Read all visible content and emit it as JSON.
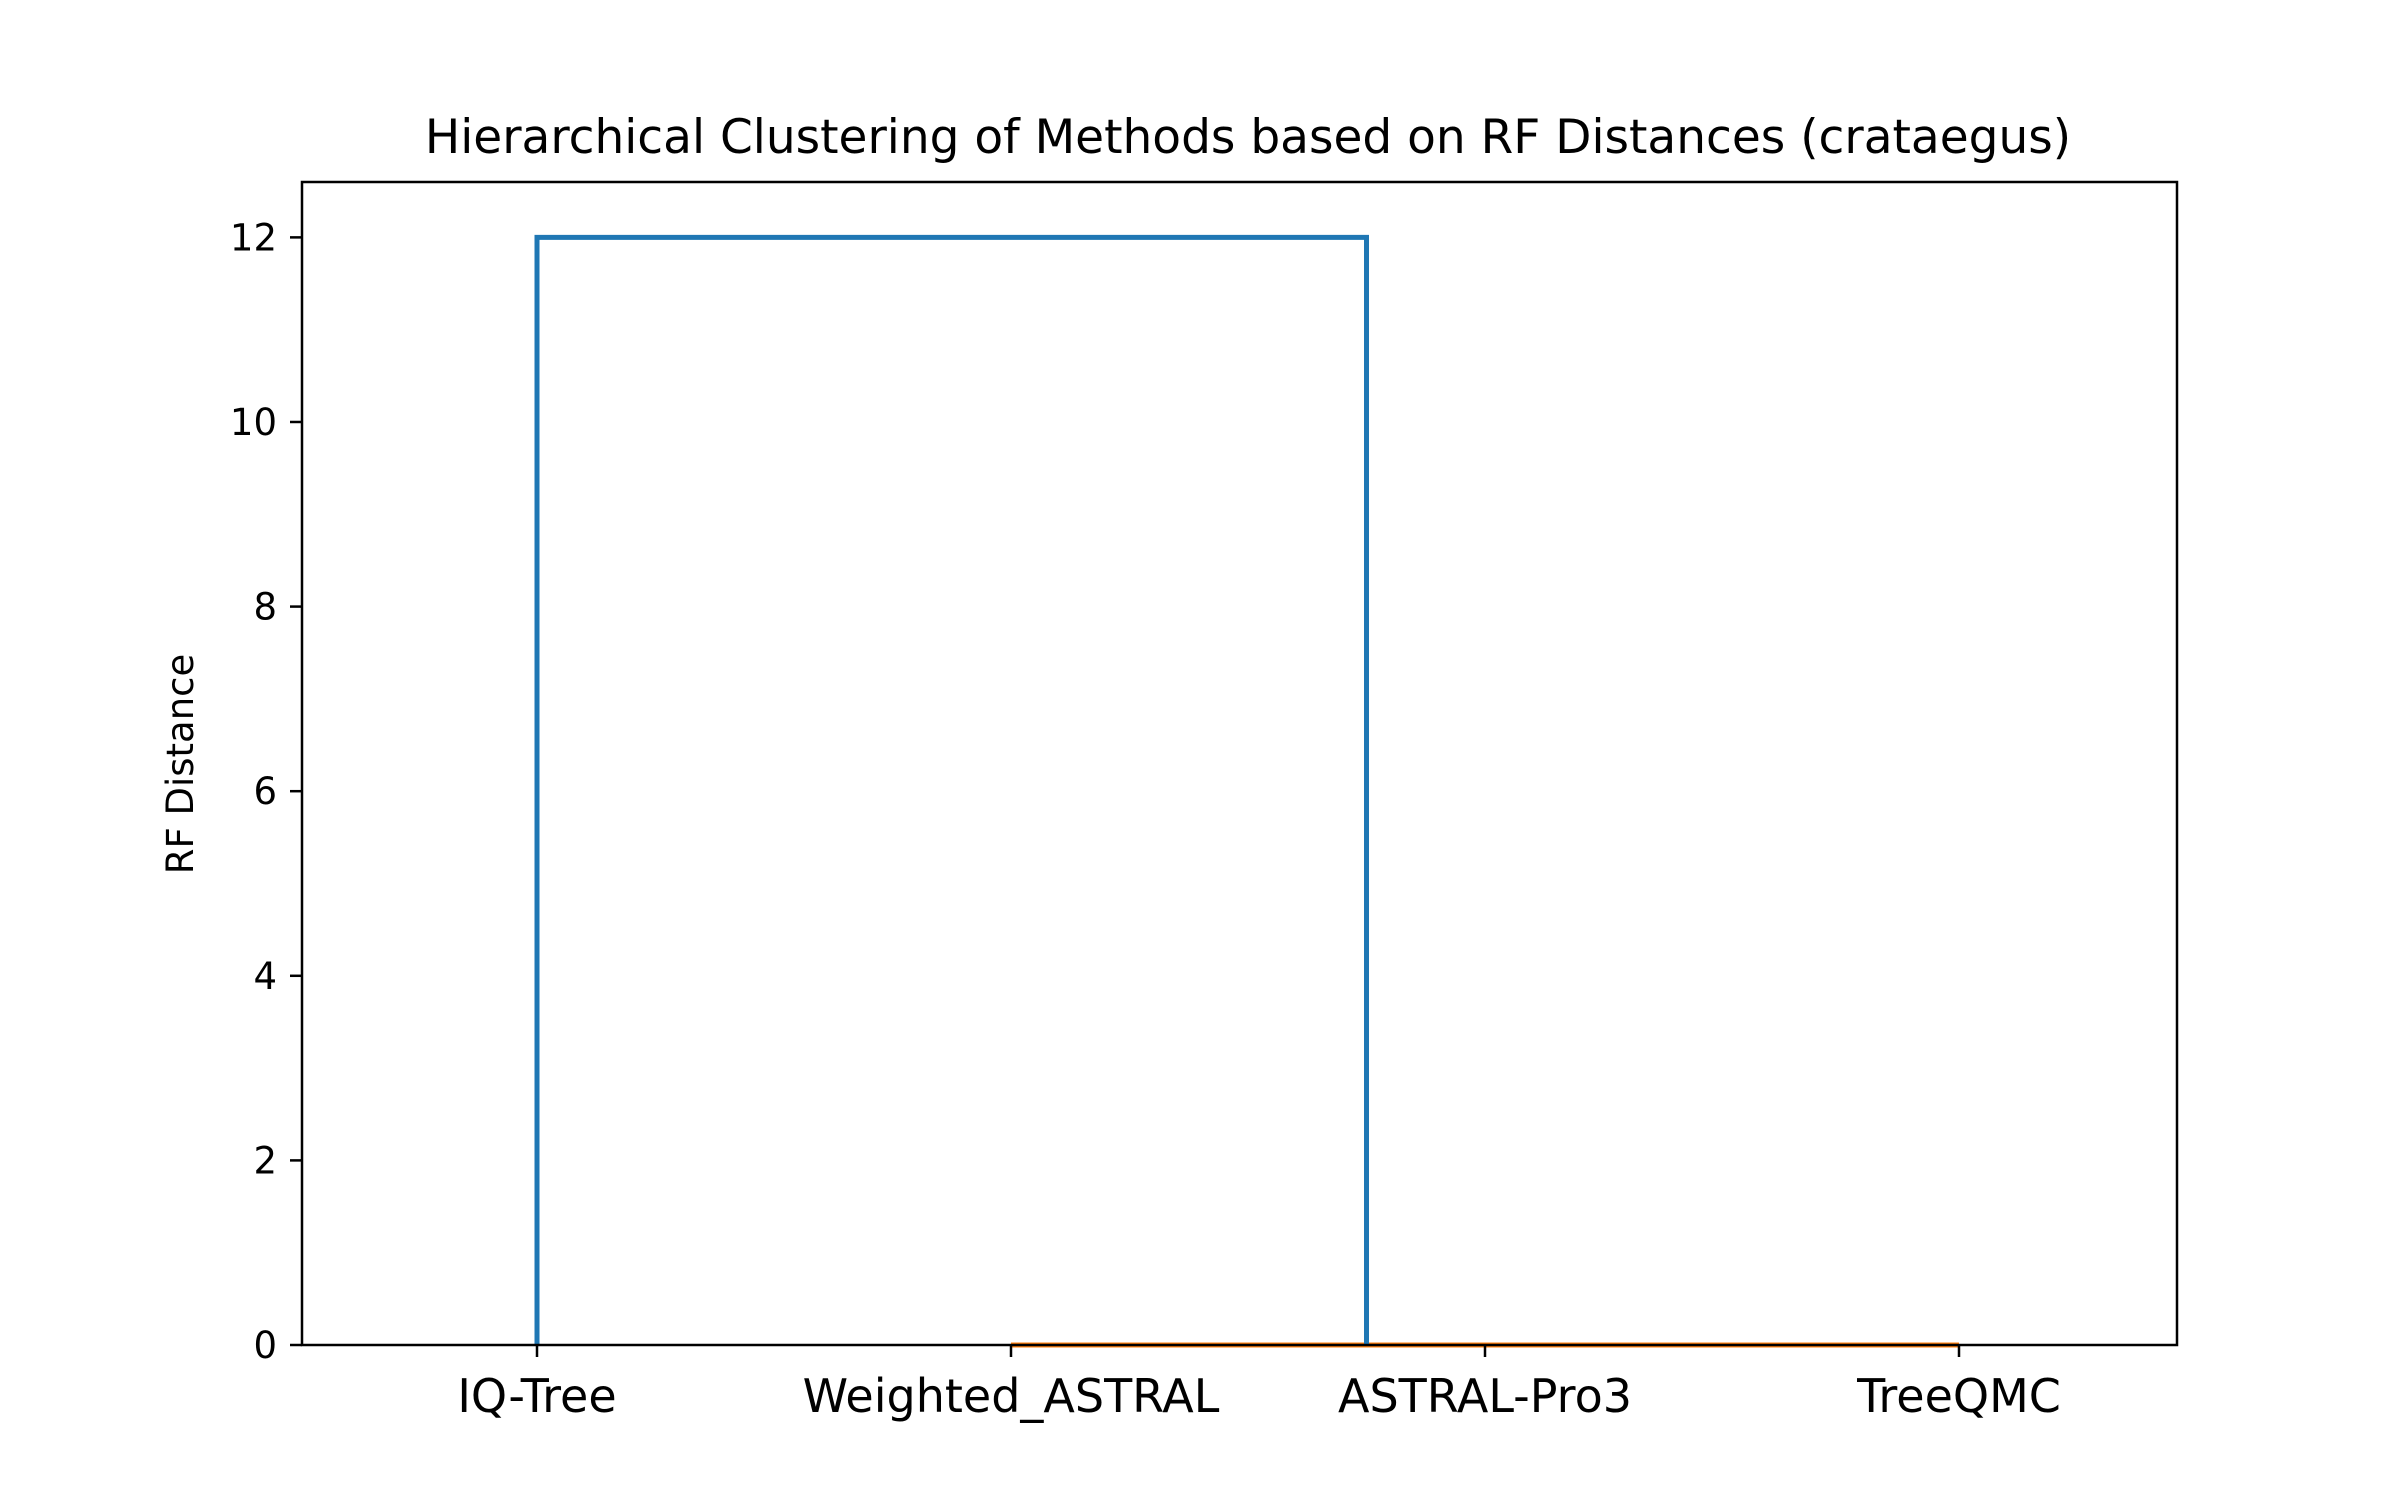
{
  "chart_data": {
    "type": "dendrogram",
    "title": "Hierarchical Clustering of Methods based on RF Distances (crataegus)",
    "xlabel": "",
    "ylabel": "RF Distance",
    "ylim": [
      0,
      12.6
    ],
    "yticks": [
      0,
      2,
      4,
      6,
      8,
      10,
      12
    ],
    "leaves": [
      "IQ-Tree",
      "Weighted_ASTRAL",
      "ASTRAL-Pro3",
      "TreeQMC"
    ],
    "merges": [
      {
        "left": 2,
        "right": 3,
        "height": 0,
        "color": "#ff7f0e"
      },
      {
        "left": 1,
        "right": "m0",
        "height": 0,
        "color": "#ff7f0e"
      },
      {
        "left": 0,
        "right": "m1",
        "height": 12,
        "color": "#1f77b4"
      }
    ],
    "grid": false
  }
}
